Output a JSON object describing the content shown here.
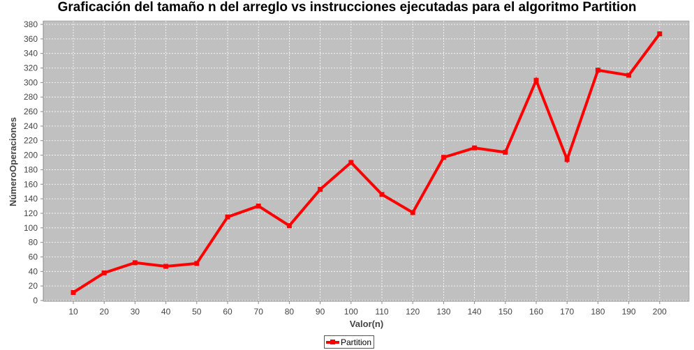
{
  "chart_data": {
    "type": "line",
    "title": "Graficación del tamaño n del arreglo vs instrucciones ejecutadas para el algoritmo Partition",
    "xlabel": "Valor(n)",
    "ylabel": "NúmeroOperaciones",
    "categories": [
      "10",
      "20",
      "30",
      "40",
      "50",
      "60",
      "70",
      "80",
      "90",
      "100",
      "110",
      "120",
      "130",
      "140",
      "150",
      "160",
      "170",
      "180",
      "190",
      "200"
    ],
    "series": [
      {
        "name": "Partition",
        "color": "#ff0000",
        "values": [
          11,
          38,
          52,
          47,
          51,
          115,
          130,
          103,
          153,
          190,
          146,
          121,
          197,
          210,
          204,
          303,
          194,
          317,
          310,
          367
        ]
      }
    ],
    "ylim": [
      0,
      380
    ],
    "yticks": [
      0,
      20,
      40,
      60,
      80,
      100,
      120,
      140,
      160,
      180,
      200,
      220,
      240,
      260,
      280,
      300,
      320,
      340,
      360,
      380
    ],
    "grid": true,
    "legend": "bottom-center",
    "plot_background": "#c0c0c0"
  }
}
